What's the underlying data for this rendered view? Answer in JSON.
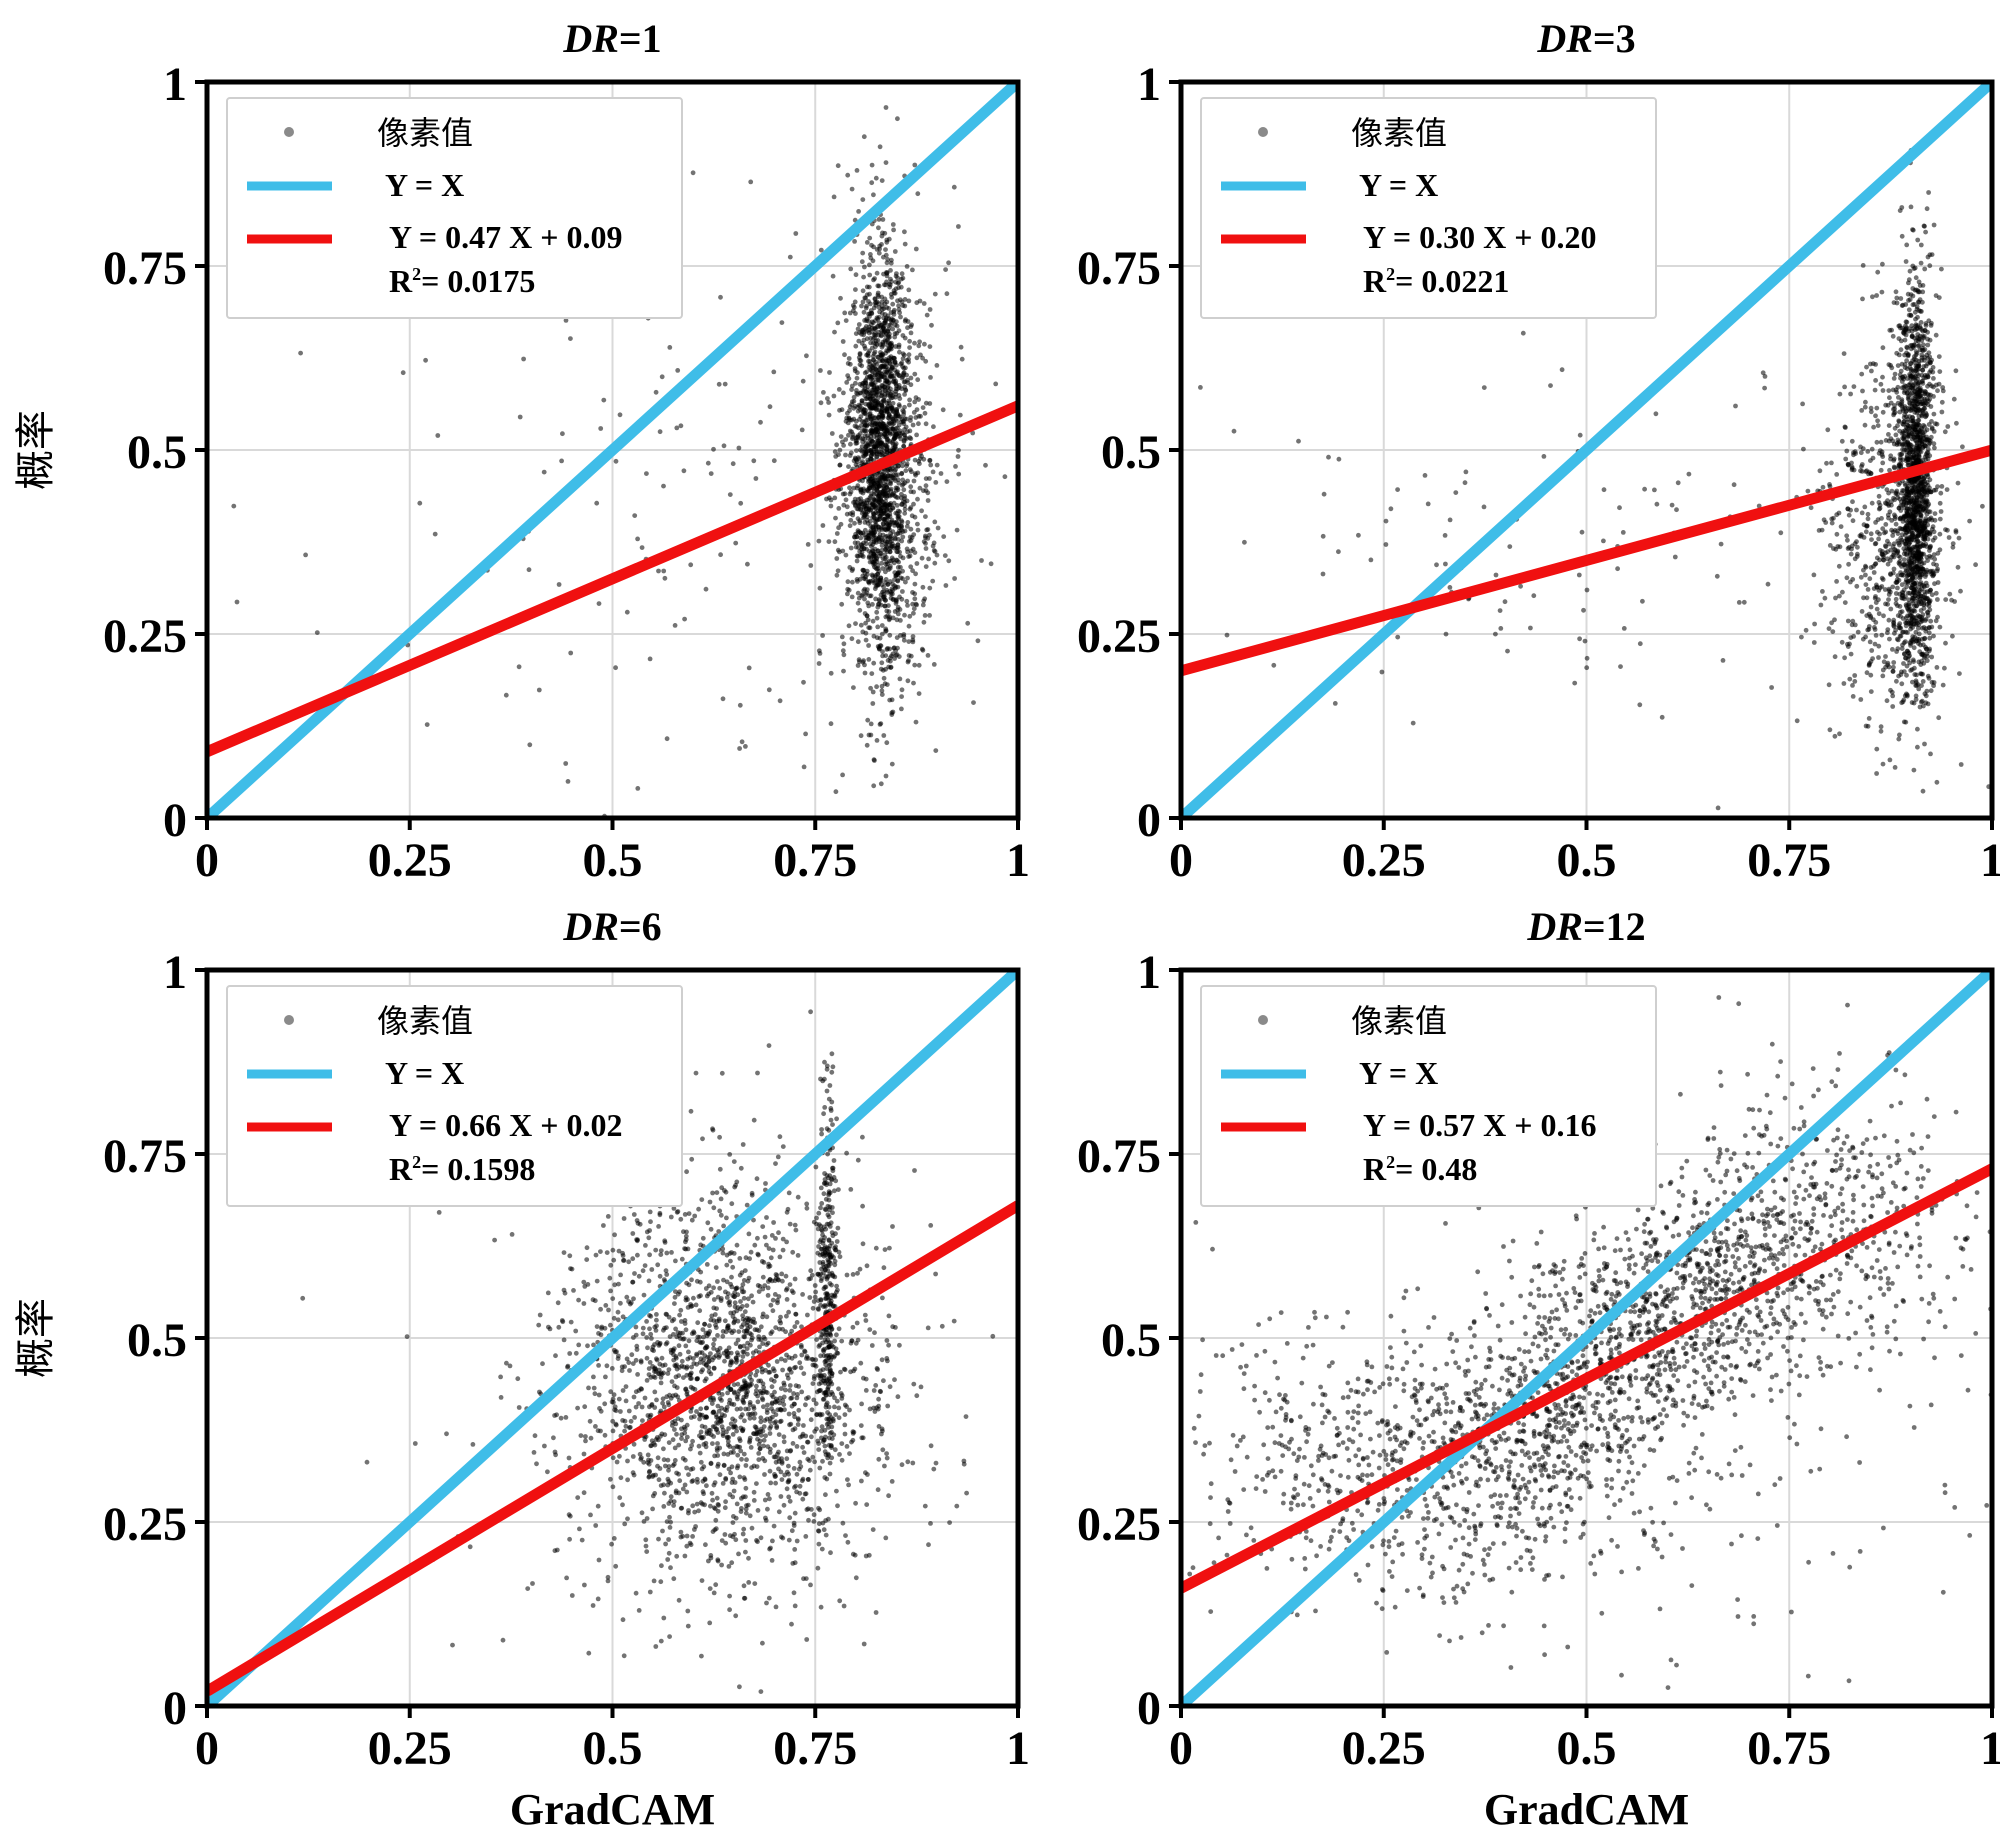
{
  "figure": {
    "y_label": "概率",
    "x_label": "GradCAM",
    "tick_labels": [
      "0",
      "0.25",
      "0.5",
      "0.75",
      "1"
    ]
  },
  "colors": {
    "identity_line": "#3fbde8",
    "fit_line": "#f01010",
    "points": "#000000",
    "legend_marker": "#8a8a8a"
  },
  "chart_data": [
    {
      "type": "scatter",
      "title": "DR=1",
      "title_prefix": "DR",
      "title_suffix": "=1",
      "xlabel": "",
      "ylabel": "概率",
      "xlim": [
        0,
        1
      ],
      "ylim": [
        0,
        1
      ],
      "xticks": [
        0,
        0.25,
        0.5,
        0.75,
        1
      ],
      "yticks": [
        0,
        0.25,
        0.5,
        0.75,
        1
      ],
      "grid": true,
      "legend": {
        "placement": "top-left",
        "points_label": "像素值",
        "identity_label": "Y = X",
        "fit_label": "Y = 0.47 X + 0.09",
        "r2_prefix": "R",
        "r2_sup": "2",
        "r2_rest": "= 0.0175"
      },
      "identity": {
        "slope": 1,
        "intercept": 0
      },
      "fit": {
        "slope": 0.47,
        "intercept": 0.09
      },
      "r2": 0.0175,
      "clusters": [
        {
          "n": 1500,
          "x_mean": 0.83,
          "x_sd": 0.018,
          "y_mean": 0.5,
          "y_sd": 0.13,
          "y_min": 0.03,
          "y_max": 0.98
        },
        {
          "n": 700,
          "x_mean": 0.84,
          "x_sd": 0.035,
          "y_mean": 0.47,
          "y_sd": 0.17,
          "y_min": 0.03,
          "y_max": 1.0
        },
        {
          "n": 160,
          "x_mean": 0.62,
          "x_sd": 0.22,
          "y_mean": 0.4,
          "y_sd": 0.2,
          "y_min": 0.0,
          "y_max": 1.0
        }
      ]
    },
    {
      "type": "scatter",
      "title": "DR=3",
      "title_prefix": "DR",
      "title_suffix": "=3",
      "xlabel": "",
      "ylabel": "",
      "xlim": [
        0,
        1
      ],
      "ylim": [
        0,
        1
      ],
      "xticks": [
        0,
        0.25,
        0.5,
        0.75,
        1
      ],
      "yticks": [
        0,
        0.25,
        0.5,
        0.75,
        1
      ],
      "grid": true,
      "legend": {
        "placement": "top-left",
        "points_label": "像素值",
        "identity_label": "Y = X",
        "fit_label": "Y = 0.30 X + 0.20",
        "r2_prefix": "R",
        "r2_sup": "2",
        "r2_rest": "= 0.0221"
      },
      "identity": {
        "slope": 1,
        "intercept": 0
      },
      "fit": {
        "slope": 0.3,
        "intercept": 0.2
      },
      "r2": 0.0221,
      "clusters": [
        {
          "n": 1500,
          "x_mean": 0.905,
          "x_sd": 0.012,
          "y_mean": 0.45,
          "y_sd": 0.14,
          "y_min": 0.15,
          "y_max": 0.9
        },
        {
          "n": 650,
          "x_mean": 0.87,
          "x_sd": 0.04,
          "y_mean": 0.38,
          "y_sd": 0.13,
          "y_min": 0.03,
          "y_max": 1.0
        },
        {
          "n": 140,
          "x_mean": 0.45,
          "x_sd": 0.3,
          "y_mean": 0.35,
          "y_sd": 0.13,
          "y_min": 0.0,
          "y_max": 1.0
        }
      ]
    },
    {
      "type": "scatter",
      "title": "DR=6",
      "title_prefix": "DR",
      "title_suffix": "=6",
      "xlabel": "GradCAM",
      "ylabel": "概率",
      "xlim": [
        0,
        1
      ],
      "ylim": [
        0,
        1
      ],
      "xticks": [
        0,
        0.25,
        0.5,
        0.75,
        1
      ],
      "yticks": [
        0,
        0.25,
        0.5,
        0.75,
        1
      ],
      "grid": true,
      "legend": {
        "placement": "top-left",
        "points_label": "像素值",
        "identity_label": "Y = X",
        "fit_label": "Y = 0.66 X + 0.02",
        "r2_prefix": "R",
        "r2_sup": "2",
        "r2_rest": "= 0.1598"
      },
      "identity": {
        "slope": 1,
        "intercept": 0
      },
      "fit": {
        "slope": 0.66,
        "intercept": 0.02
      },
      "r2": 0.1598,
      "clusters": [
        {
          "n": 1800,
          "x_mean": 0.64,
          "x_sd": 0.09,
          "y_mean": 0.44,
          "y_sd": 0.13,
          "y_min": 0.05,
          "y_max": 1.0
        },
        {
          "n": 350,
          "x_mean": 0.765,
          "x_sd": 0.006,
          "y_mean": 0.55,
          "y_sd": 0.16,
          "y_min": 0.3,
          "y_max": 0.9
        },
        {
          "n": 250,
          "x_mean": 0.62,
          "x_sd": 0.18,
          "y_mean": 0.4,
          "y_sd": 0.2,
          "y_min": 0.0,
          "y_max": 1.0
        }
      ]
    },
    {
      "type": "scatter",
      "title": "DR=12",
      "title_prefix": "DR",
      "title_suffix": "=12",
      "xlabel": "GradCAM",
      "ylabel": "",
      "xlim": [
        0,
        1
      ],
      "ylim": [
        0,
        1
      ],
      "xticks": [
        0,
        0.25,
        0.5,
        0.75,
        1
      ],
      "yticks": [
        0,
        0.25,
        0.5,
        0.75,
        1
      ],
      "grid": true,
      "legend": {
        "placement": "top-left",
        "points_label": "像素值",
        "identity_label": "Y = X",
        "fit_label": "Y = 0.57 X + 0.16",
        "r2_prefix": "R",
        "r2_sup": "2",
        "r2_rest": "= 0.48"
      },
      "identity": {
        "slope": 1,
        "intercept": 0
      },
      "fit": {
        "slope": 0.57,
        "intercept": 0.16
      },
      "r2": 0.48,
      "clusters": [
        {
          "n": 1300,
          "x_mean": 0.55,
          "x_sd": 0.13,
          "y_mean": 0.48,
          "y_sd": 0.09,
          "y_min": 0.05,
          "y_max": 1.0,
          "follow_slope": 0.6,
          "follow_x0": 0.55
        },
        {
          "n": 700,
          "x_mean": 0.3,
          "x_sd": 0.14,
          "y_mean": 0.33,
          "y_sd": 0.09,
          "y_min": 0.05,
          "y_max": 0.7
        },
        {
          "n": 500,
          "x_mean": 0.78,
          "x_sd": 0.11,
          "y_mean": 0.65,
          "y_sd": 0.1,
          "y_min": 0.1,
          "y_max": 1.0
        },
        {
          "n": 250,
          "x_mean": 0.5,
          "x_sd": 0.25,
          "y_mean": 0.4,
          "y_sd": 0.2,
          "y_min": 0.0,
          "y_max": 1.0
        }
      ]
    }
  ]
}
